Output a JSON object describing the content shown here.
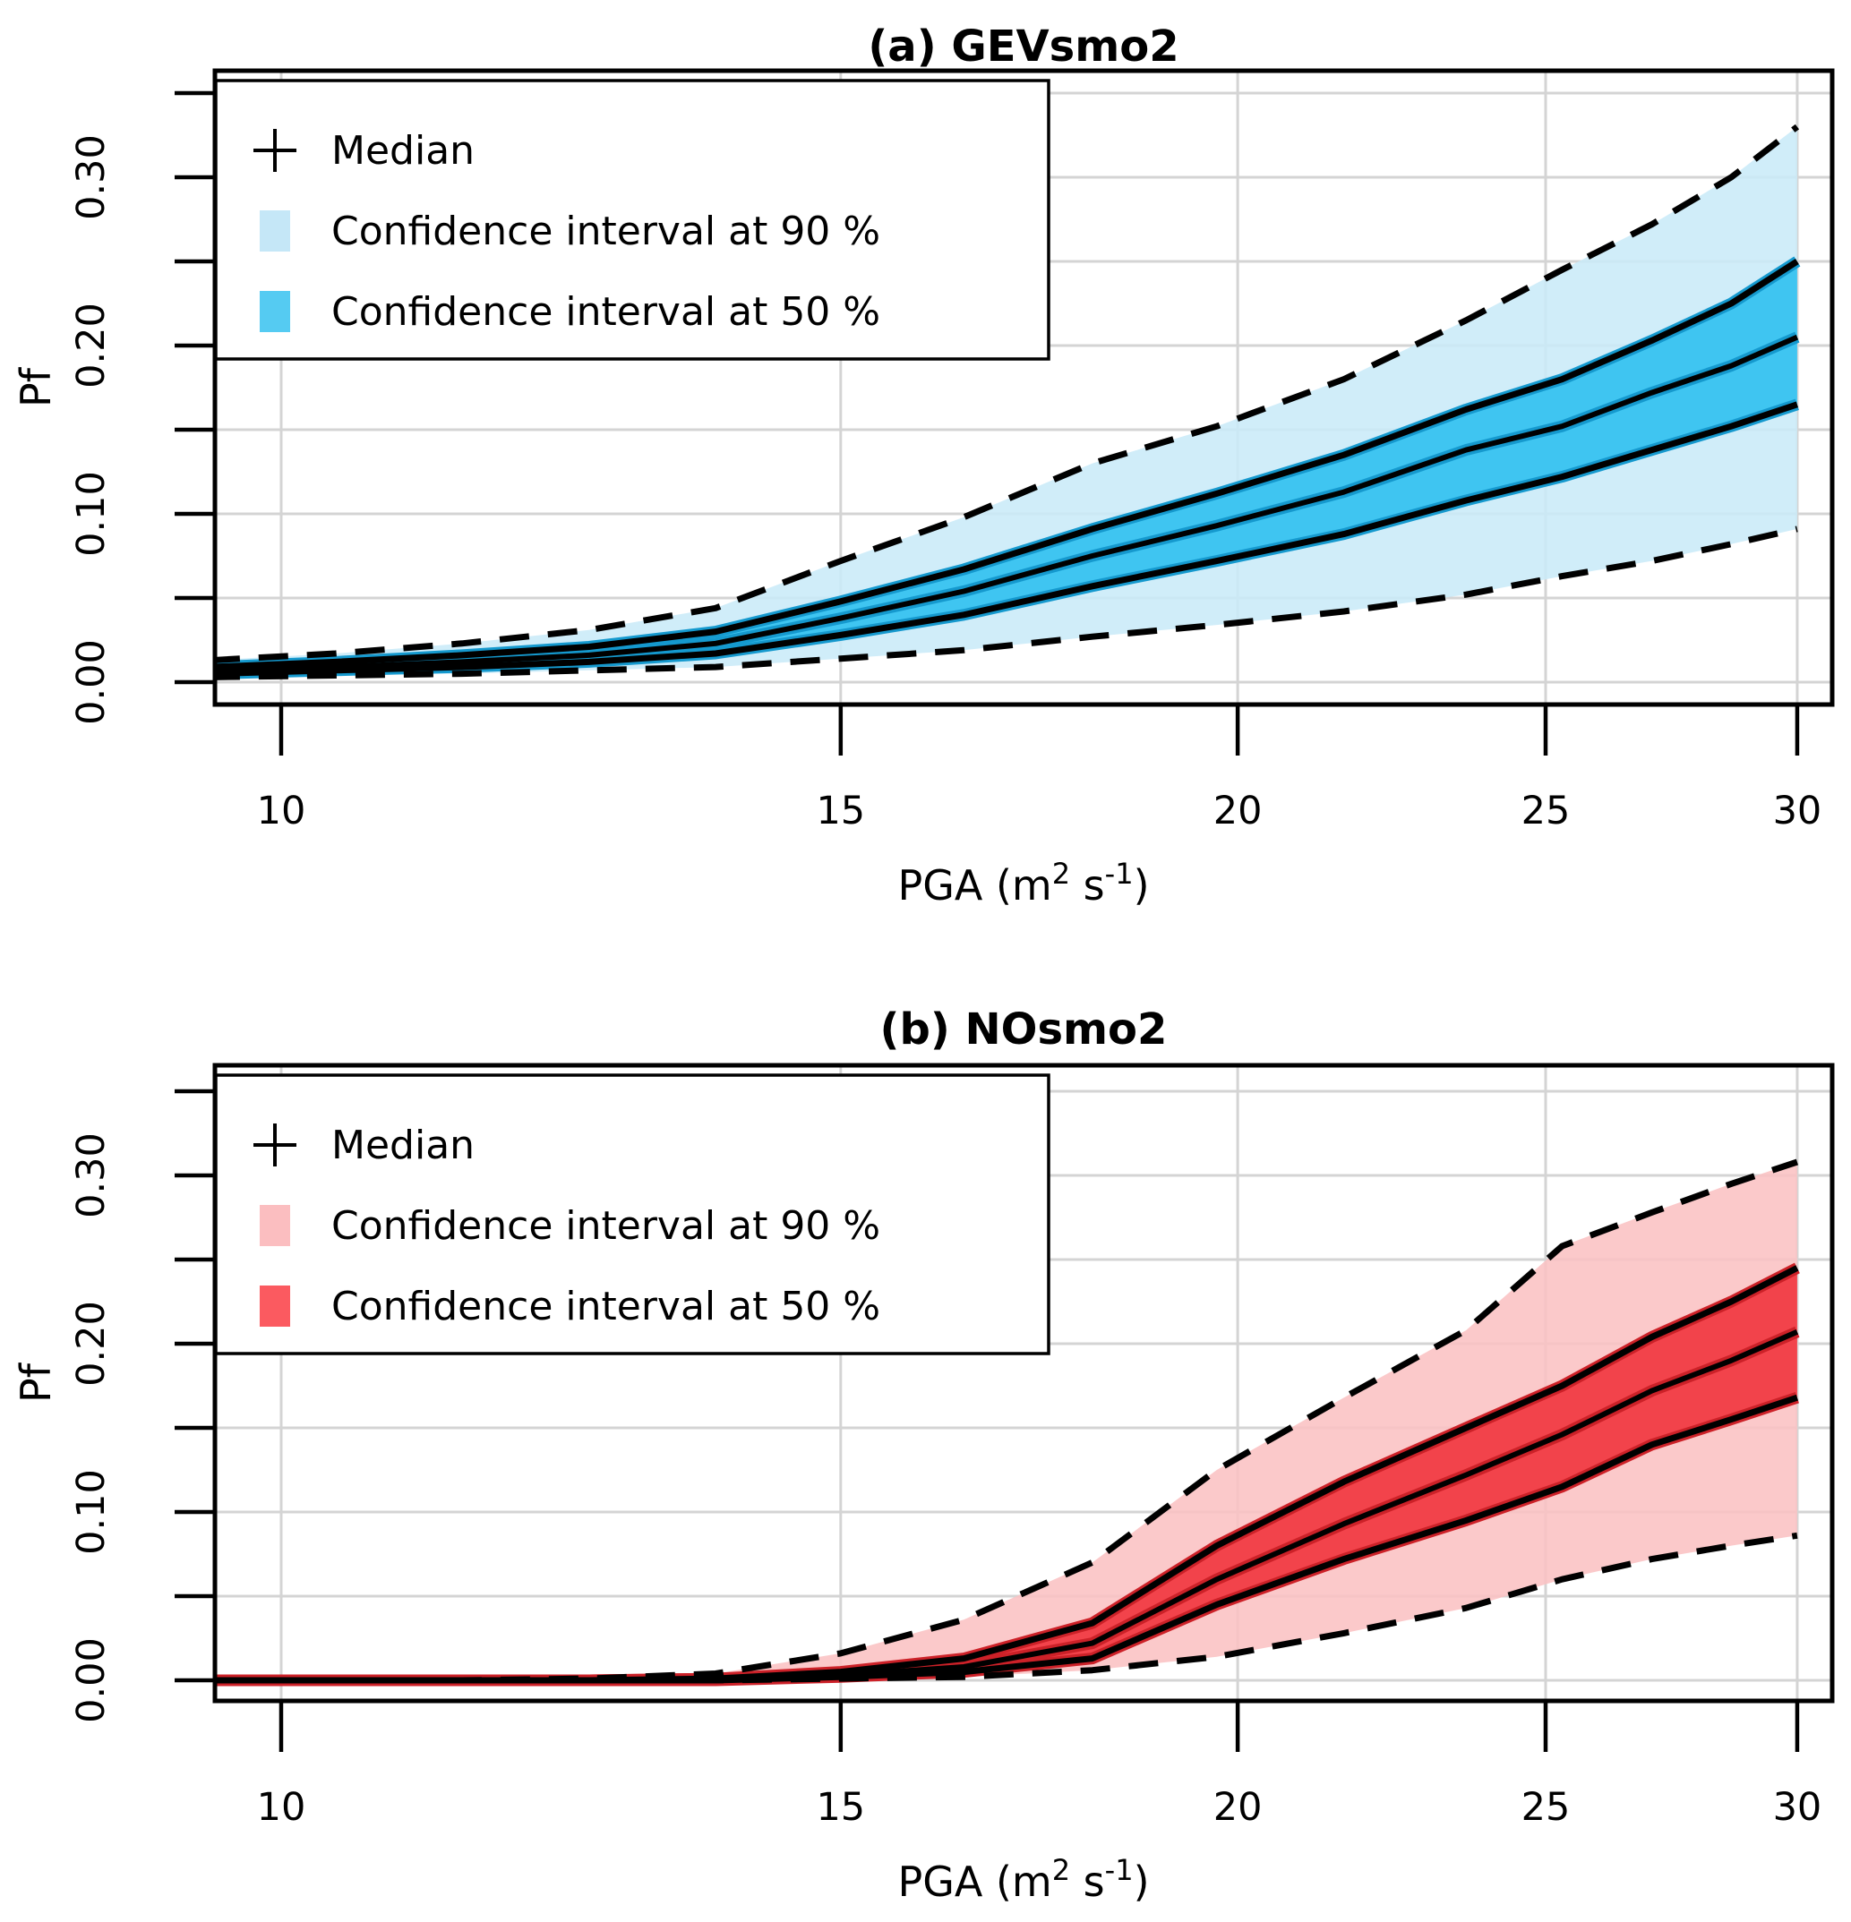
{
  "figure": {
    "background": "#ffffff"
  },
  "style": {
    "grid_color": "#d4d4d4",
    "box_color": "#000000",
    "text_color": "#000000",
    "dash_color": "#000000"
  },
  "axis": {
    "y_label": "Pf",
    "x_label_parts": [
      {
        "text": "PGA (m"
      },
      {
        "text": "2",
        "sup": true
      },
      {
        "text": " s"
      },
      {
        "text": "-1",
        "sup": true
      },
      {
        "text": ")"
      }
    ],
    "x_ticks": [
      {
        "v": 10,
        "label": "10"
      },
      {
        "v": 15,
        "label": "15"
      },
      {
        "v": 20,
        "label": "20"
      },
      {
        "v": 25,
        "label": "25"
      },
      {
        "v": 30,
        "label": "30"
      }
    ],
    "y_ticks": [
      {
        "v": 0.0,
        "label": "0.00"
      },
      {
        "v": 0.05,
        "label": ""
      },
      {
        "v": 0.1,
        "label": "0.10"
      },
      {
        "v": 0.15,
        "label": ""
      },
      {
        "v": 0.2,
        "label": "0.20"
      },
      {
        "v": 0.25,
        "label": ""
      },
      {
        "v": 0.3,
        "label": "0.30"
      },
      {
        "v": 0.35,
        "label": ""
      }
    ]
  },
  "legend": {
    "items": [
      {
        "symbol": "plus",
        "label": "Median"
      },
      {
        "symbol": "swatch90",
        "label": "Confidence interval at 90 %"
      },
      {
        "symbol": "swatch50",
        "label": "Confidence interval at 50 %"
      }
    ]
  },
  "chart_data": [
    {
      "type": "line",
      "panel": "a",
      "title": "(a) GEVsmo2",
      "xlabel": "PGA (m2 s-1)",
      "ylabel": "Pf",
      "xscale": "log",
      "xlim": [
        9.5,
        30.8
      ],
      "ylim": [
        -0.013,
        0.363
      ],
      "x_ticks": [
        10,
        15,
        20,
        25,
        30
      ],
      "y_ticks": [
        0,
        0.05,
        0.1,
        0.15,
        0.2,
        0.25,
        0.3,
        0.35
      ],
      "grid": true,
      "legend_position": "top-left",
      "x": [
        9.5,
        10.4,
        11.4,
        12.5,
        13.7,
        15.0,
        16.4,
        18.0,
        19.7,
        21.6,
        23.6,
        25.3,
        27.0,
        28.6,
        30.0
      ],
      "series": [
        {
          "name": "Median",
          "values": [
            0.007,
            0.009,
            0.012,
            0.016,
            0.023,
            0.038,
            0.054,
            0.075,
            0.093,
            0.113,
            0.138,
            0.152,
            0.172,
            0.188,
            0.205
          ]
        },
        {
          "name": "CI50 upper",
          "values": [
            0.009,
            0.012,
            0.016,
            0.021,
            0.03,
            0.048,
            0.067,
            0.091,
            0.112,
            0.135,
            0.162,
            0.18,
            0.203,
            0.225,
            0.25
          ]
        },
        {
          "name": "CI50 lower",
          "values": [
            0.005,
            0.007,
            0.009,
            0.012,
            0.017,
            0.028,
            0.04,
            0.057,
            0.072,
            0.088,
            0.108,
            0.122,
            0.138,
            0.152,
            0.165
          ]
        },
        {
          "name": "CI90 upper",
          "values": [
            0.013,
            0.017,
            0.023,
            0.031,
            0.044,
            0.072,
            0.098,
            0.13,
            0.152,
            0.18,
            0.215,
            0.245,
            0.272,
            0.3,
            0.33
          ]
        },
        {
          "name": "CI90 lower",
          "values": [
            0.003,
            0.004,
            0.005,
            0.007,
            0.009,
            0.014,
            0.019,
            0.027,
            0.034,
            0.042,
            0.052,
            0.063,
            0.072,
            0.082,
            0.091
          ]
        }
      ],
      "colors": {
        "band90": "#c9eaf8",
        "band50": "#3fc5f1",
        "edge": "#1599ce",
        "legend90": "#c5e7f7",
        "legend50": "#55cbf2",
        "line": "#000000"
      }
    },
    {
      "type": "line",
      "panel": "b",
      "title": "(b) NOsmo2",
      "xlabel": "PGA (m2 s-1)",
      "ylabel": "Pf",
      "xscale": "log",
      "xlim": [
        9.5,
        30.8
      ],
      "ylim": [
        -0.013,
        0.363
      ],
      "x_ticks": [
        10,
        15,
        20,
        25,
        30
      ],
      "y_ticks": [
        0,
        0.05,
        0.1,
        0.15,
        0.2,
        0.25,
        0.3,
        0.35
      ],
      "grid": true,
      "legend_position": "top-left",
      "x": [
        9.5,
        10.4,
        11.4,
        12.5,
        13.7,
        15.0,
        16.4,
        18.0,
        19.7,
        21.6,
        23.6,
        25.3,
        27.0,
        28.6,
        30.0
      ],
      "series": [
        {
          "name": "Median",
          "values": [
            0.0,
            0.0,
            0.0,
            0.0,
            0.001,
            0.003,
            0.008,
            0.022,
            0.06,
            0.093,
            0.122,
            0.146,
            0.172,
            0.19,
            0.207
          ]
        },
        {
          "name": "CI50 upper",
          "values": [
            0.0,
            0.0,
            0.0,
            0.0,
            0.001,
            0.005,
            0.013,
            0.034,
            0.08,
            0.118,
            0.15,
            0.175,
            0.204,
            0.225,
            0.245
          ]
        },
        {
          "name": "CI50 lower",
          "values": [
            0.0,
            0.0,
            0.0,
            0.0,
            0.0,
            0.002,
            0.005,
            0.013,
            0.045,
            0.072,
            0.095,
            0.115,
            0.14,
            0.155,
            0.168
          ]
        },
        {
          "name": "CI90 upper",
          "values": [
            0.0,
            0.0,
            0.0,
            0.001,
            0.004,
            0.016,
            0.036,
            0.07,
            0.125,
            0.168,
            0.208,
            0.258,
            0.278,
            0.295,
            0.308
          ]
        },
        {
          "name": "CI90 lower",
          "values": [
            0.0,
            0.0,
            0.0,
            0.0,
            0.0,
            0.001,
            0.002,
            0.006,
            0.014,
            0.028,
            0.043,
            0.06,
            0.072,
            0.08,
            0.086
          ]
        }
      ],
      "colors": {
        "band90": "#fbc1c3",
        "band50": "#f2434b",
        "edge": "#cc2128",
        "legend90": "#fbbec0",
        "legend50": "#fb5a60",
        "line": "#000000"
      }
    }
  ]
}
